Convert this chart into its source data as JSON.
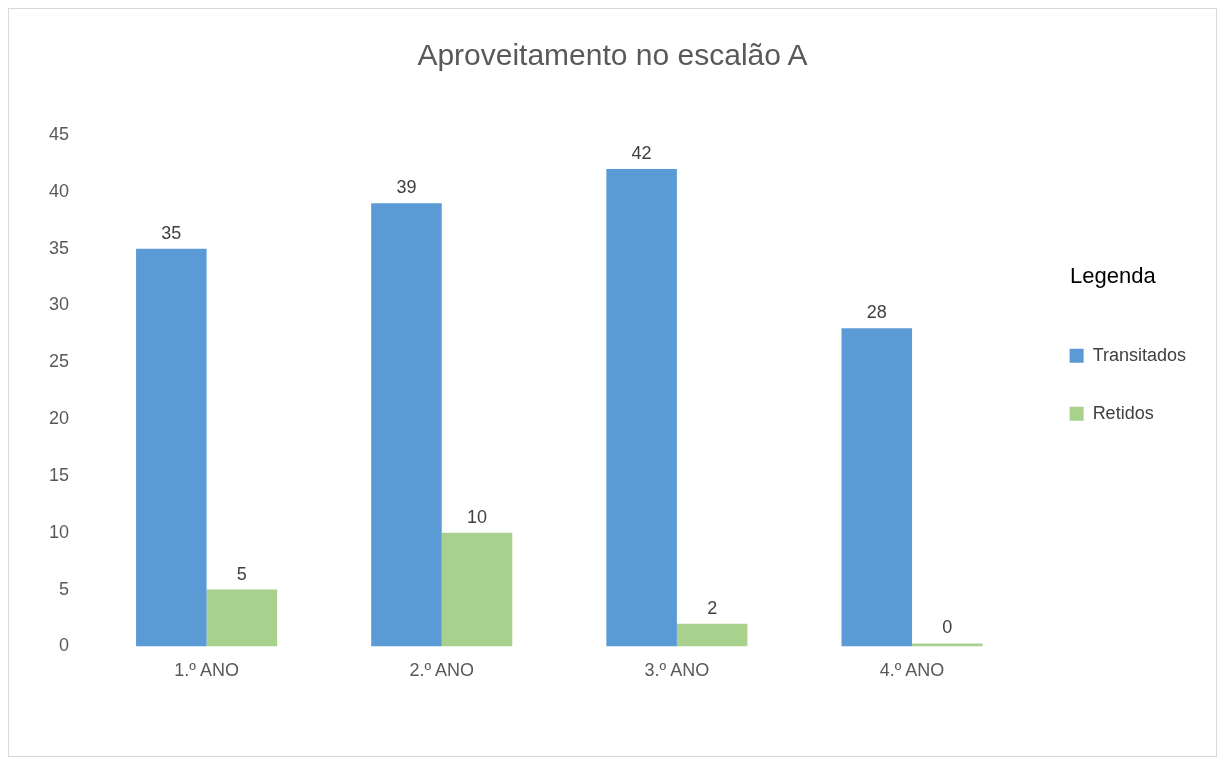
{
  "chart_data": {
    "type": "bar",
    "title": "Aproveitamento no escalão A",
    "legend_title": "Legenda",
    "categories": [
      "1.º ANO",
      "2.º ANO",
      "3.º ANO",
      "4.º ANO"
    ],
    "series": [
      {
        "name": "Transitados",
        "color": "#5b9bd5",
        "values": [
          35,
          39,
          42,
          28
        ]
      },
      {
        "name": "Retidos",
        "color": "#a9d18e",
        "values": [
          5,
          10,
          2,
          0
        ]
      }
    ],
    "ylim": [
      0,
      45
    ],
    "yticks": [
      0,
      5,
      10,
      15,
      20,
      25,
      30,
      35,
      40,
      45
    ],
    "grid": false,
    "legend": "right",
    "data_labels": true
  }
}
